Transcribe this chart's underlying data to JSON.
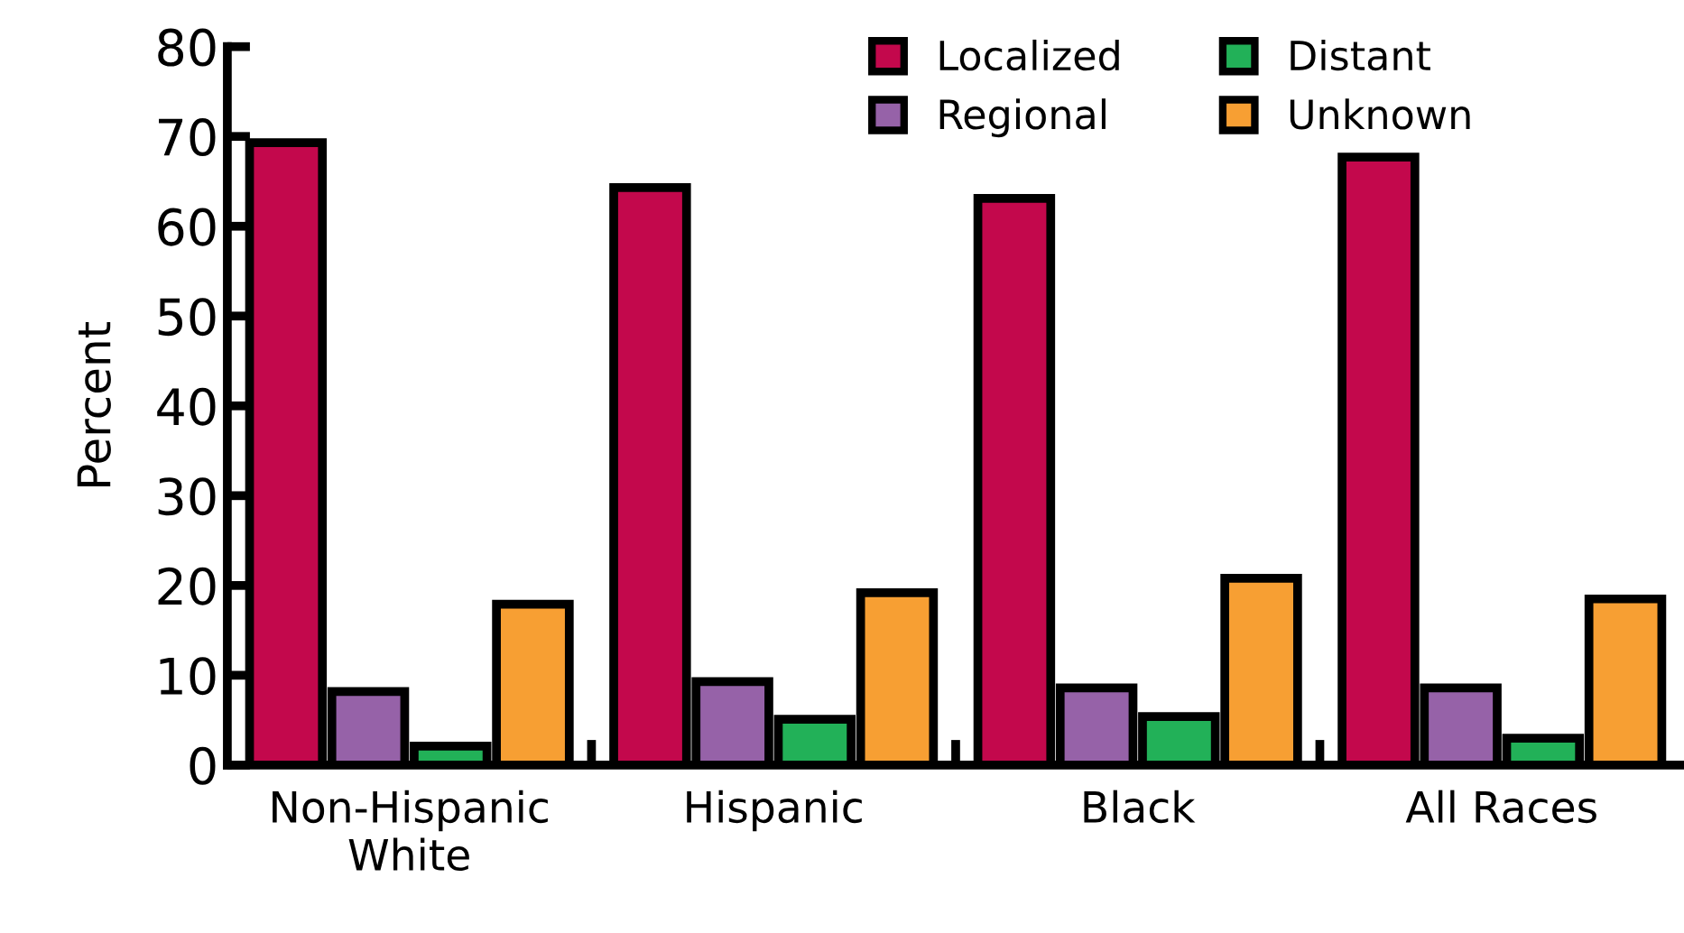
{
  "chart_data": {
    "type": "bar",
    "ylabel": "Percent",
    "categories": [
      "Non-Hispanic\nWhite",
      "Hispanic",
      "Black",
      "All Races"
    ],
    "series": [
      {
        "name": "Localized",
        "color": "#c3084c",
        "values": [
          69.3,
          64.3,
          63.1,
          67.7
        ]
      },
      {
        "name": "Regional",
        "color": "#9662a8",
        "values": [
          8.2,
          9.3,
          8.6,
          8.6
        ]
      },
      {
        "name": "Distant",
        "color": "#22b158",
        "values": [
          2.1,
          5.1,
          5.4,
          3.0
        ]
      },
      {
        "name": "Unknown",
        "color": "#f79f33",
        "values": [
          17.9,
          19.2,
          20.8,
          18.5
        ]
      }
    ],
    "ylim": [
      0,
      80
    ],
    "yticks": [
      0,
      10,
      20,
      30,
      40,
      50,
      60,
      70,
      80
    ],
    "grid": false,
    "legend": "top right"
  }
}
